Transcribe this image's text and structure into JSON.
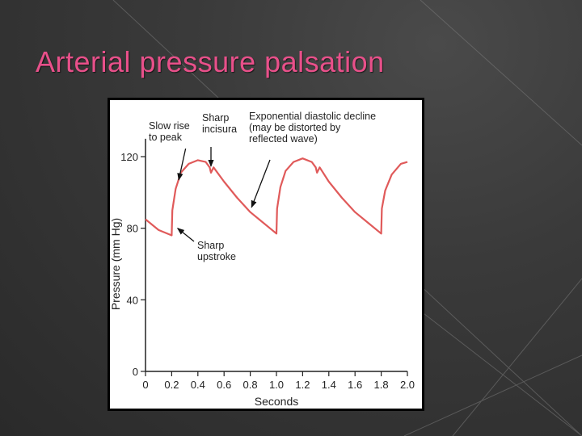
{
  "slide": {
    "title": "Arterial pressure palsation",
    "background": "#3a3a3a",
    "title_color": "#e8508a"
  },
  "chart_data": {
    "type": "line",
    "title": "",
    "xlabel": "Seconds",
    "ylabel": "Pressure (mm Hg)",
    "xlim": [
      0,
      2.0
    ],
    "ylim": [
      0,
      130
    ],
    "x_ticks": [
      "0",
      "0.2",
      "0.4",
      "0.6",
      "0.8",
      "1.0",
      "1.2",
      "1.4",
      "1.6",
      "1.8",
      "2.0"
    ],
    "y_ticks": [
      "0",
      "40",
      "80",
      "120"
    ],
    "grid": false,
    "series": [
      {
        "color": "#e05a5a",
        "x": [
          0.0,
          0.1,
          0.2,
          0.205,
          0.23,
          0.27,
          0.33,
          0.4,
          0.46,
          0.49,
          0.5,
          0.52,
          0.6,
          0.7,
          0.8,
          0.9,
          1.0,
          1.005,
          1.03,
          1.07,
          1.13,
          1.2,
          1.27,
          1.3,
          1.31,
          1.33,
          1.4,
          1.5,
          1.6,
          1.7,
          1.8,
          1.805,
          1.83,
          1.88,
          1.95,
          2.0
        ],
        "y": [
          85,
          79,
          76,
          90,
          102,
          111,
          116,
          118,
          117,
          114,
          111,
          114,
          106,
          97,
          89,
          83,
          77,
          91,
          103,
          112,
          117,
          119,
          117,
          114,
          111,
          114,
          106,
          97,
          89,
          83,
          77,
          91,
          101,
          110,
          116,
          117
        ]
      }
    ],
    "annotations": [
      {
        "id": "slow_rise",
        "lines": [
          "Slow rise",
          "to peak"
        ]
      },
      {
        "id": "incisura",
        "lines": [
          "Sharp",
          "incisura"
        ]
      },
      {
        "id": "diastolic",
        "lines": [
          "Exponential diastolic decline",
          "(may be distorted by",
          "reflected wave)"
        ]
      },
      {
        "id": "upstroke",
        "lines": [
          "Sharp",
          "upstroke"
        ]
      }
    ]
  }
}
